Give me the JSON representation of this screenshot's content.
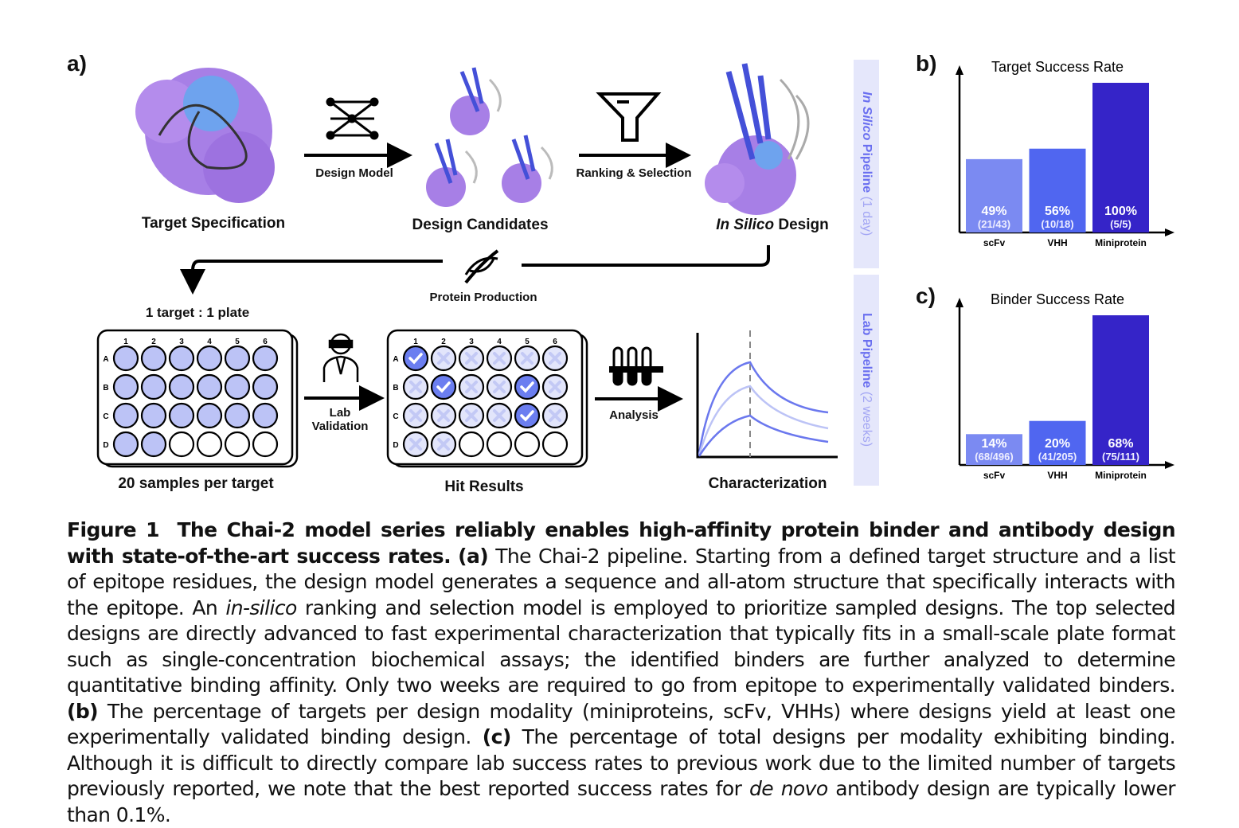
{
  "panel_labels": {
    "a": "a)",
    "b": "b)",
    "c": "c)"
  },
  "steps": {
    "target_spec": "Target Specification",
    "design_model": "Design Model",
    "design_candidates": "Design Candidates",
    "ranking": "Ranking & Selection",
    "in_silico_italic": "In Silico",
    "in_silico_rest": " Design",
    "protein_production": "Protein Production",
    "plate_ratio": "1 target : 1 plate",
    "samples": "20 samples per target",
    "lab_validation_1": "Lab",
    "lab_validation_2": "Validation",
    "hit_results": "Hit Results",
    "analysis": "Analysis",
    "characterization": "Characterization"
  },
  "banners": {
    "in_silico": {
      "italic": "In Silico",
      "bold": " Pipeline",
      "light": " (1 day)"
    },
    "lab": {
      "bold": "Lab Pipeline",
      "light": " (2 weeks)"
    }
  },
  "plate": {
    "columns": [
      "1",
      "2",
      "3",
      "4",
      "5",
      "6"
    ],
    "rows": [
      "A",
      "B",
      "C",
      "D"
    ],
    "samples_filled": 20,
    "hits": [
      "A1",
      "B2",
      "B5",
      "C5"
    ]
  },
  "colors": {
    "bar_scfv": "#7b8af2",
    "bar_vhh": "#5066f0",
    "bar_mini": "#3524c8",
    "well": "#bcc3f6",
    "hit": "#6b7ef0",
    "banner_text": "#6a6ff0"
  },
  "chart_data": [
    {
      "type": "bar",
      "title": "Target Success Rate",
      "categories": [
        "scFv",
        "VHH",
        "Miniprotein"
      ],
      "values": [
        49,
        56,
        100
      ],
      "labels": [
        "49%",
        "56%",
        "100%"
      ],
      "counts": [
        "(21/43)",
        "(10/18)",
        "(5/5)"
      ]
    },
    {
      "type": "bar",
      "title": "Binder Success Rate",
      "categories": [
        "scFv",
        "VHH",
        "Miniprotein"
      ],
      "values": [
        14,
        20,
        68
      ],
      "labels": [
        "14%",
        "20%",
        "68%"
      ],
      "counts": [
        "(68/496)",
        "(41/205)",
        "(75/111)"
      ]
    }
  ],
  "caption": {
    "fig": "Figure 1",
    "title": "The Chai-2 model series reliably enables high-affinity protein binder and antibody design with state-of-the-art success rates.",
    "a_tag": "(a)",
    "a_text1": " The Chai-2 pipeline.  Starting from a defined target structure and a list of epitope residues, the design model generates a sequence and all-atom structure that specifically interacts with the epitope. An ",
    "a_italic": "in-silico",
    "a_text2": " ranking and selection model is employed to prioritize sampled designs.  The top selected designs are directly advanced to fast experimental characterization that typically fits in a small-scale plate format such as single-concentration biochemical assays; the identified binders are further analyzed to determine quantitative binding affinity. Only two weeks are required to go from epitope to experimentally validated binders. ",
    "b_tag": "(b)",
    "b_text": " The percentage of targets per design modality (miniproteins, scFv, VHHs) where designs yield at least one experimentally validated binding design. ",
    "c_tag": "(c)",
    "c_text1": " The percentage of total designs per modality exhibiting binding. Although it is difficult to directly compare lab success rates to previous work due to the limited number of targets previously reported, we note that the best reported success rates for ",
    "c_italic": "de novo",
    "c_text2": " antibody design are typically lower than 0.1%."
  }
}
